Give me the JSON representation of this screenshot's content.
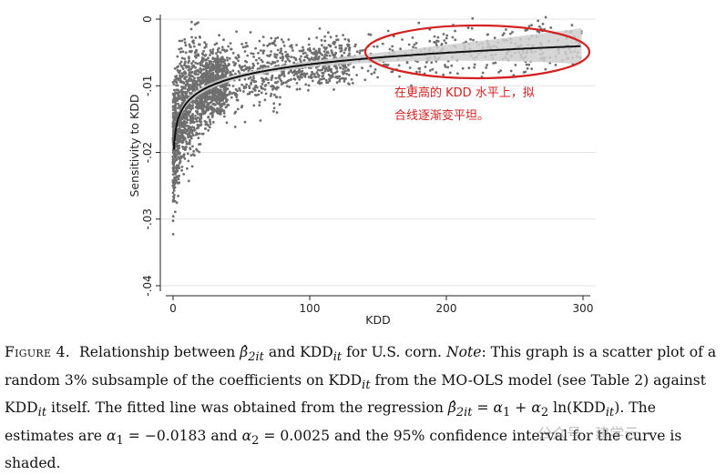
{
  "chart_data": {
    "type": "scatter",
    "xlabel": "KDD",
    "ylabel": "Sensitivity to KDD",
    "xlim": [
      0,
      300
    ],
    "ylim": [
      -0.04,
      0
    ],
    "x_ticks": [
      "0",
      "100",
      "200",
      "300"
    ],
    "y_ticks": [
      "0",
      "-.01",
      "-.02",
      "-.03",
      "-.04"
    ],
    "y_tick_values": [
      0,
      -0.01,
      -0.02,
      -0.03,
      -0.04
    ],
    "x_tick_values": [
      0,
      100,
      200,
      300
    ],
    "fitted_curve": {
      "form": "log",
      "alpha1": -0.0183,
      "alpha2": 0.0025
    },
    "confidence_band": "95%",
    "point_color": "#6f6f6f",
    "line_color": "#111111",
    "band_color": "#cfcfcf",
    "annotation": {
      "line1": "在更高的 KDD 水平上，拟",
      "line2": "合线逐渐变平坦。",
      "color": "#d42020"
    }
  },
  "caption": {
    "label": "Figure 4.",
    "text_html": "Relationship between <span class=\"it\">β̂</span><sub class=\"it\">2it</sub> and KDD<sub class=\"it\">it</sub> for U.S. corn. <span class=\"it\">Note</span>: This graph is a scatter plot of a random 3% subsample of the coefficients on KDD<sub class=\"it\">it</sub> from the MO-OLS model (see Table 2) against KDD<sub class=\"it\">it</sub> itself. The fitted line was obtained from the regression <span class=\"it\">β̂</span><sub class=\"it\">2it</sub> = <span class=\"it\">α</span><sub>1</sub> + <span class=\"it\">α</span><sub>2</sub> ln(KDD<sub class=\"it\">it</sub>). The estimates are <span class=\"it\">α</span><sub>1</sub> = −0.0183 and <span class=\"it\">α</span><sub>2</sub> = 0.0025 and the 95% confidence interval for the curve is shaded."
  },
  "watermark": "公众号 · 建学云"
}
